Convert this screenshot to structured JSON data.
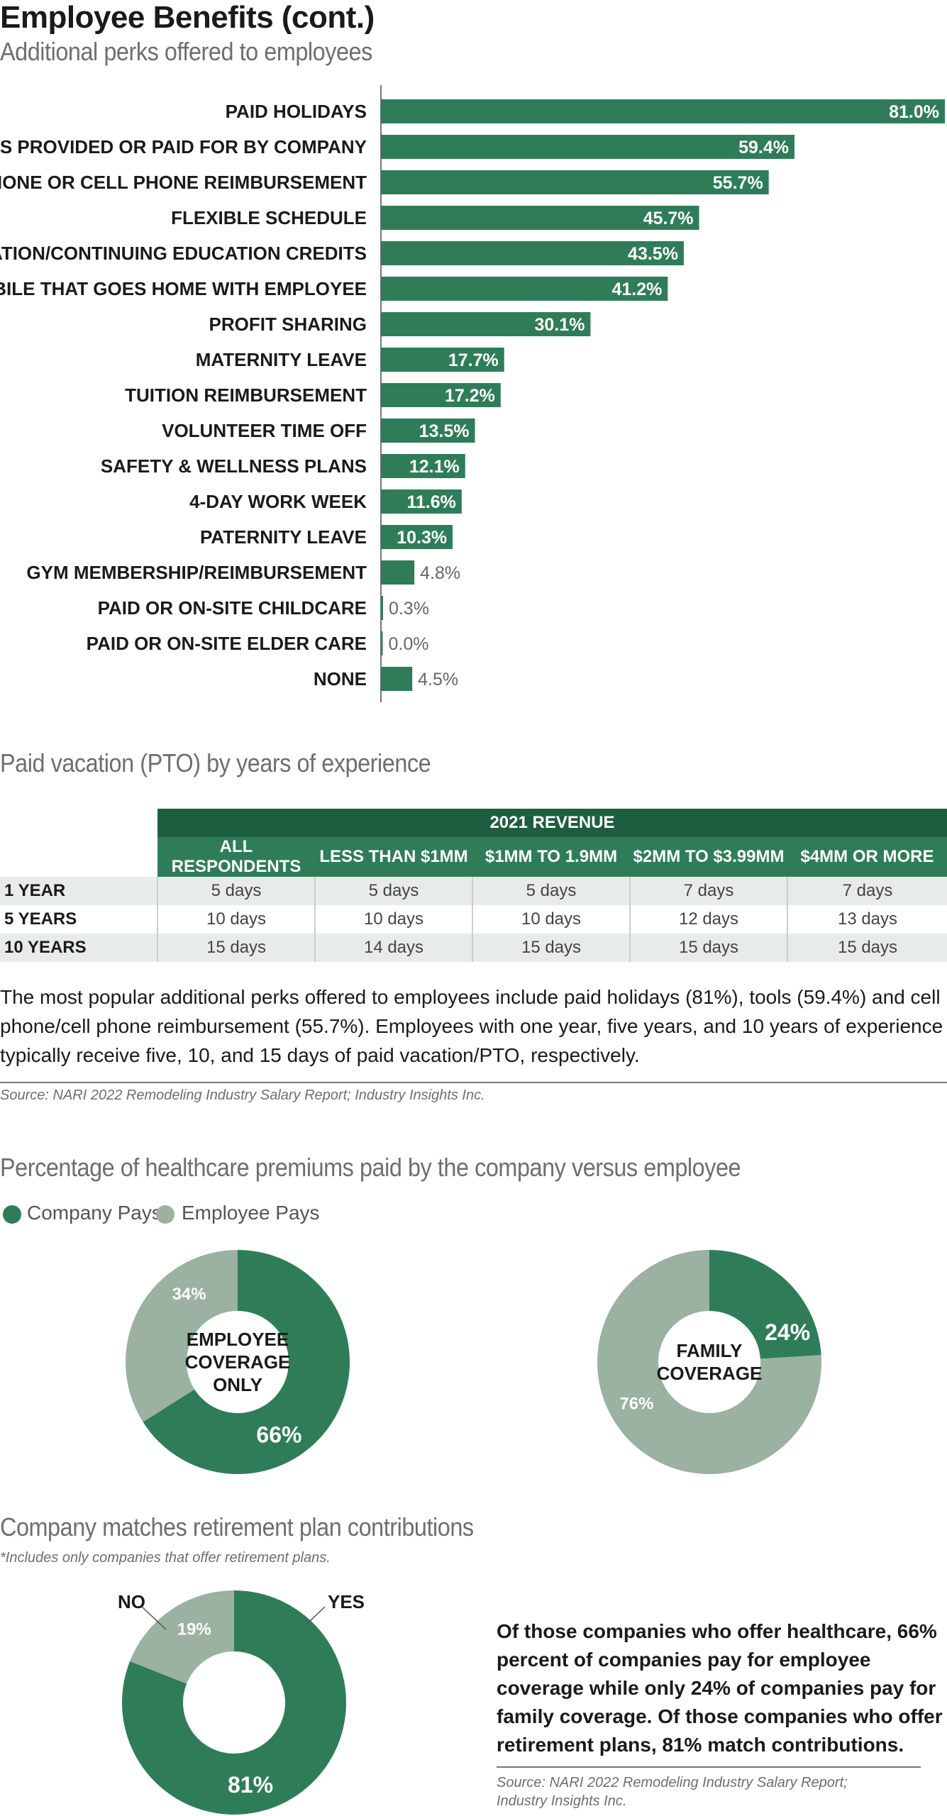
{
  "page": {
    "title": "Employee Benefits (cont.)",
    "subtitle": "Additional perks offered to employees"
  },
  "colors": {
    "company": "#2f7d58",
    "employee": "#9bb1a2",
    "dark_green": "#1e5e40"
  },
  "chart_data": [
    {
      "type": "bar",
      "orientation": "horizontal",
      "title": "Additional perks offered to employees",
      "categories": [
        "PAID HOLIDAYS",
        "TOOLS PROVIDED OR PAID FOR BY COMPANY",
        "CELL PHONE OR CELL PHONE REIMBURSEMENT",
        "FLEXIBLE SCHEDULE",
        "CERTIFICATION/CONTINUING EDUCATION CREDITS",
        "AUTOMOBILE THAT GOES HOME WITH EMPLOYEE",
        "PROFIT SHARING",
        "MATERNITY LEAVE",
        "TUITION REIMBURSEMENT",
        "VOLUNTEER TIME OFF",
        "SAFETY & WELLNESS PLANS",
        "4-DAY WORK WEEK",
        "PATERNITY LEAVE",
        "GYM MEMBERSHIP/REIMBURSEMENT",
        "PAID OR ON-SITE CHILDCARE",
        "PAID OR ON-SITE ELDER CARE",
        "NONE"
      ],
      "values": [
        81.0,
        59.4,
        55.7,
        45.7,
        43.5,
        41.2,
        30.1,
        17.7,
        17.2,
        13.5,
        12.1,
        11.6,
        10.3,
        4.8,
        0.3,
        0.0,
        4.5
      ],
      "value_labels": [
        "81.0%",
        "59.4%",
        "55.7%",
        "45.7%",
        "43.5%",
        "41.2%",
        "30.1%",
        "17.7%",
        "17.2%",
        "13.5%",
        "12.1%",
        "11.6%",
        "10.3%",
        "4.8%",
        "0.3%",
        "0.0%",
        "4.5%"
      ],
      "xlim": [
        0,
        81
      ],
      "grid": false,
      "color": "#2f7d58"
    },
    {
      "type": "table",
      "title": "Paid vacation (PTO) by years of experience",
      "group_header": "2021 REVENUE",
      "columns": [
        "ALL RESPONDENTS",
        "LESS THAN $1MM",
        "$1MM TO 1.9MM",
        "$2MM TO $3.99MM",
        "$4MM OR MORE"
      ],
      "rows": [
        {
          "label": "1 YEAR",
          "values": [
            "5 days",
            "5 days",
            "5 days",
            "7 days",
            "7 days"
          ]
        },
        {
          "label": "5 YEARS",
          "values": [
            "10 days",
            "10 days",
            "10 days",
            "12 days",
            "13 days"
          ]
        },
        {
          "label": "10 YEARS",
          "values": [
            "15 days",
            "14 days",
            "15 days",
            "15 days",
            "15 days"
          ]
        }
      ]
    },
    {
      "type": "pie",
      "donut": true,
      "center_label": [
        "EMPLOYEE",
        "COVERAGE",
        "ONLY"
      ],
      "slices": [
        {
          "name": "Company Pays",
          "value": 66,
          "label": "66%"
        },
        {
          "name": "Employee Pays",
          "value": 34,
          "label": "34%"
        }
      ]
    },
    {
      "type": "pie",
      "donut": true,
      "center_label": [
        "FAMILY",
        "COVERAGE"
      ],
      "slices": [
        {
          "name": "Company Pays",
          "value": 24,
          "label": "24%"
        },
        {
          "name": "Employee Pays",
          "value": 76,
          "label": "76%"
        }
      ]
    },
    {
      "type": "pie",
      "donut": true,
      "title": "Company matches retirement plan contributions",
      "slices": [
        {
          "name": "YES",
          "value": 81,
          "label": "81%"
        },
        {
          "name": "NO",
          "value": 19,
          "label": "19%"
        }
      ]
    }
  ],
  "pto": {
    "title": "Paid vacation (PTO) by years of experience"
  },
  "summary": {
    "text": "The most popular additional perks offered to employees include paid holidays (81%), tools (59.4%) and cell phone/cell phone reimbursement (55.7%). Employees with one year, five years, and 10 years of experience typically receive five, 10, and 15 days of paid vacation/PTO, respectively.",
    "source": "Source: NARI 2022 Remodeling Industry Salary Report; Industry Insights Inc."
  },
  "healthcare": {
    "title": "Percentage of healthcare premiums paid by the company versus employee",
    "legend": {
      "company": "Company Pays",
      "employee": "Employee Pays"
    }
  },
  "retirement": {
    "title": "Company matches retirement plan contributions",
    "note": "*Includes only companies that offer retirement plans.",
    "text": "Of those companies who offer healthcare, 66% percent of companies pay for employee coverage while only 24% of companies pay for family coverage. Of those companies who of­fer retirement plans, 81% match contributions.",
    "source": "Source: NARI 2022 Remodeling Industry Salary Report; Industry Insights Inc."
  }
}
